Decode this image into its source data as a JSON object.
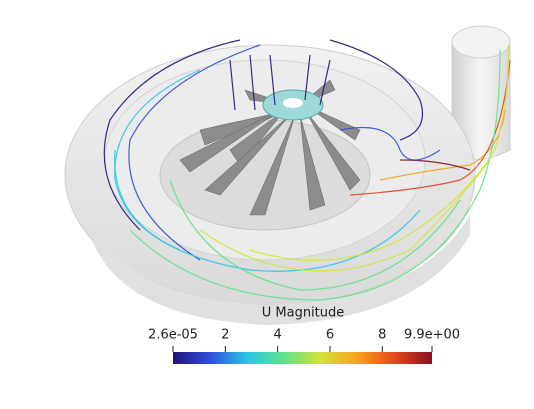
{
  "colorbar": {
    "title": "U Magnitude",
    "range": [
      2.6e-05,
      9.9
    ],
    "ticks": [
      {
        "value": 2.6e-05,
        "label": "2.6e-05"
      },
      2,
      4,
      6,
      8,
      {
        "value": 9.9,
        "label": "9.9e+00"
      }
    ],
    "colormap": [
      "#23137a",
      "#2f4fd8",
      "#29c6e6",
      "#5fe28a",
      "#d6e23a",
      "#f6a21c",
      "#e2461a",
      "#8a0f1f"
    ]
  }
}
